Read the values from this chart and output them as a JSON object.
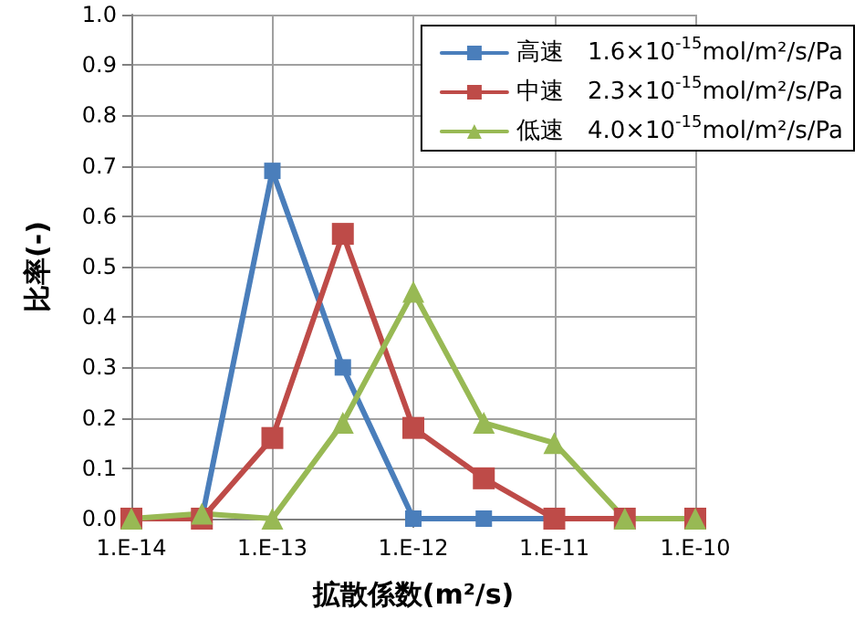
{
  "chart_data": {
    "type": "line",
    "xlabel": "拡散係数(m²/s)",
    "ylabel": "比率(-)",
    "categories": [
      "1.E-14",
      null,
      "1.E-13",
      null,
      "1.E-12",
      null,
      "1.E-11",
      null,
      "1.E-10"
    ],
    "ylim": [
      0,
      1
    ],
    "yticks": [
      {
        "value": 0,
        "label": "0.0"
      },
      0.1,
      0.2,
      0.3,
      0.4,
      0.5,
      0.6,
      0.7,
      0.8,
      0.9,
      {
        "value": 1,
        "label": "1.0"
      }
    ],
    "grid": true,
    "legend": "top right",
    "line_style": "solid",
    "series": [
      {
        "name": "高速　1.6×10$^{-15}$mol/m²/s/Pa",
        "color": "#4a7ebb",
        "marker": "square",
        "values": [
          0,
          0,
          0.69,
          0.3,
          0,
          0,
          0,
          null,
          null
        ]
      },
      {
        "name": "中速　2.3×10$^{-15}$mol/m²/s/Pa",
        "color": "#be4b48",
        "marker": "square",
        "values": [
          0,
          0,
          0.16,
          0.565,
          0.18,
          0.08,
          0,
          0,
          0
        ]
      },
      {
        "name": "低速　4.0×10$^{-15}$mol/m²/s/Pa",
        "color": "#98b954",
        "marker": "triangle",
        "values": [
          0,
          0.01,
          0,
          0.19,
          0.45,
          0.19,
          0.15,
          0,
          0
        ]
      }
    ]
  }
}
